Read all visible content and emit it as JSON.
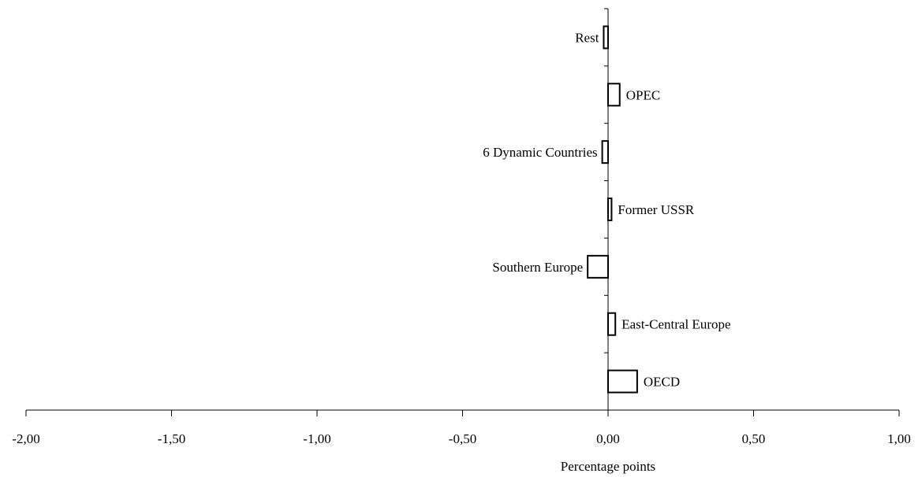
{
  "chart_data": {
    "type": "bar",
    "orientation": "horizontal",
    "categories": [
      "OECD",
      "East-Central Europe",
      "Southern Europe",
      "Former USSR",
      "6 Dynamic Countries",
      "OPEC",
      "Rest"
    ],
    "values": [
      0.1,
      0.025,
      -0.07,
      0.012,
      -0.02,
      0.04,
      -0.015
    ],
    "xlabel": "Percentage points",
    "xlim": [
      -2.0,
      1.0
    ],
    "xticks": [
      -2.0,
      -1.5,
      -1.0,
      -0.5,
      0.0,
      0.5,
      1.0
    ],
    "xtick_labels": [
      "-2,00",
      "-1,50",
      "-1,00",
      "-0,50",
      "0,00",
      "0,50",
      "1,00"
    ],
    "grid": false,
    "legend": "none",
    "bar_fill": "#ffffff",
    "bar_stroke": "#000000"
  }
}
